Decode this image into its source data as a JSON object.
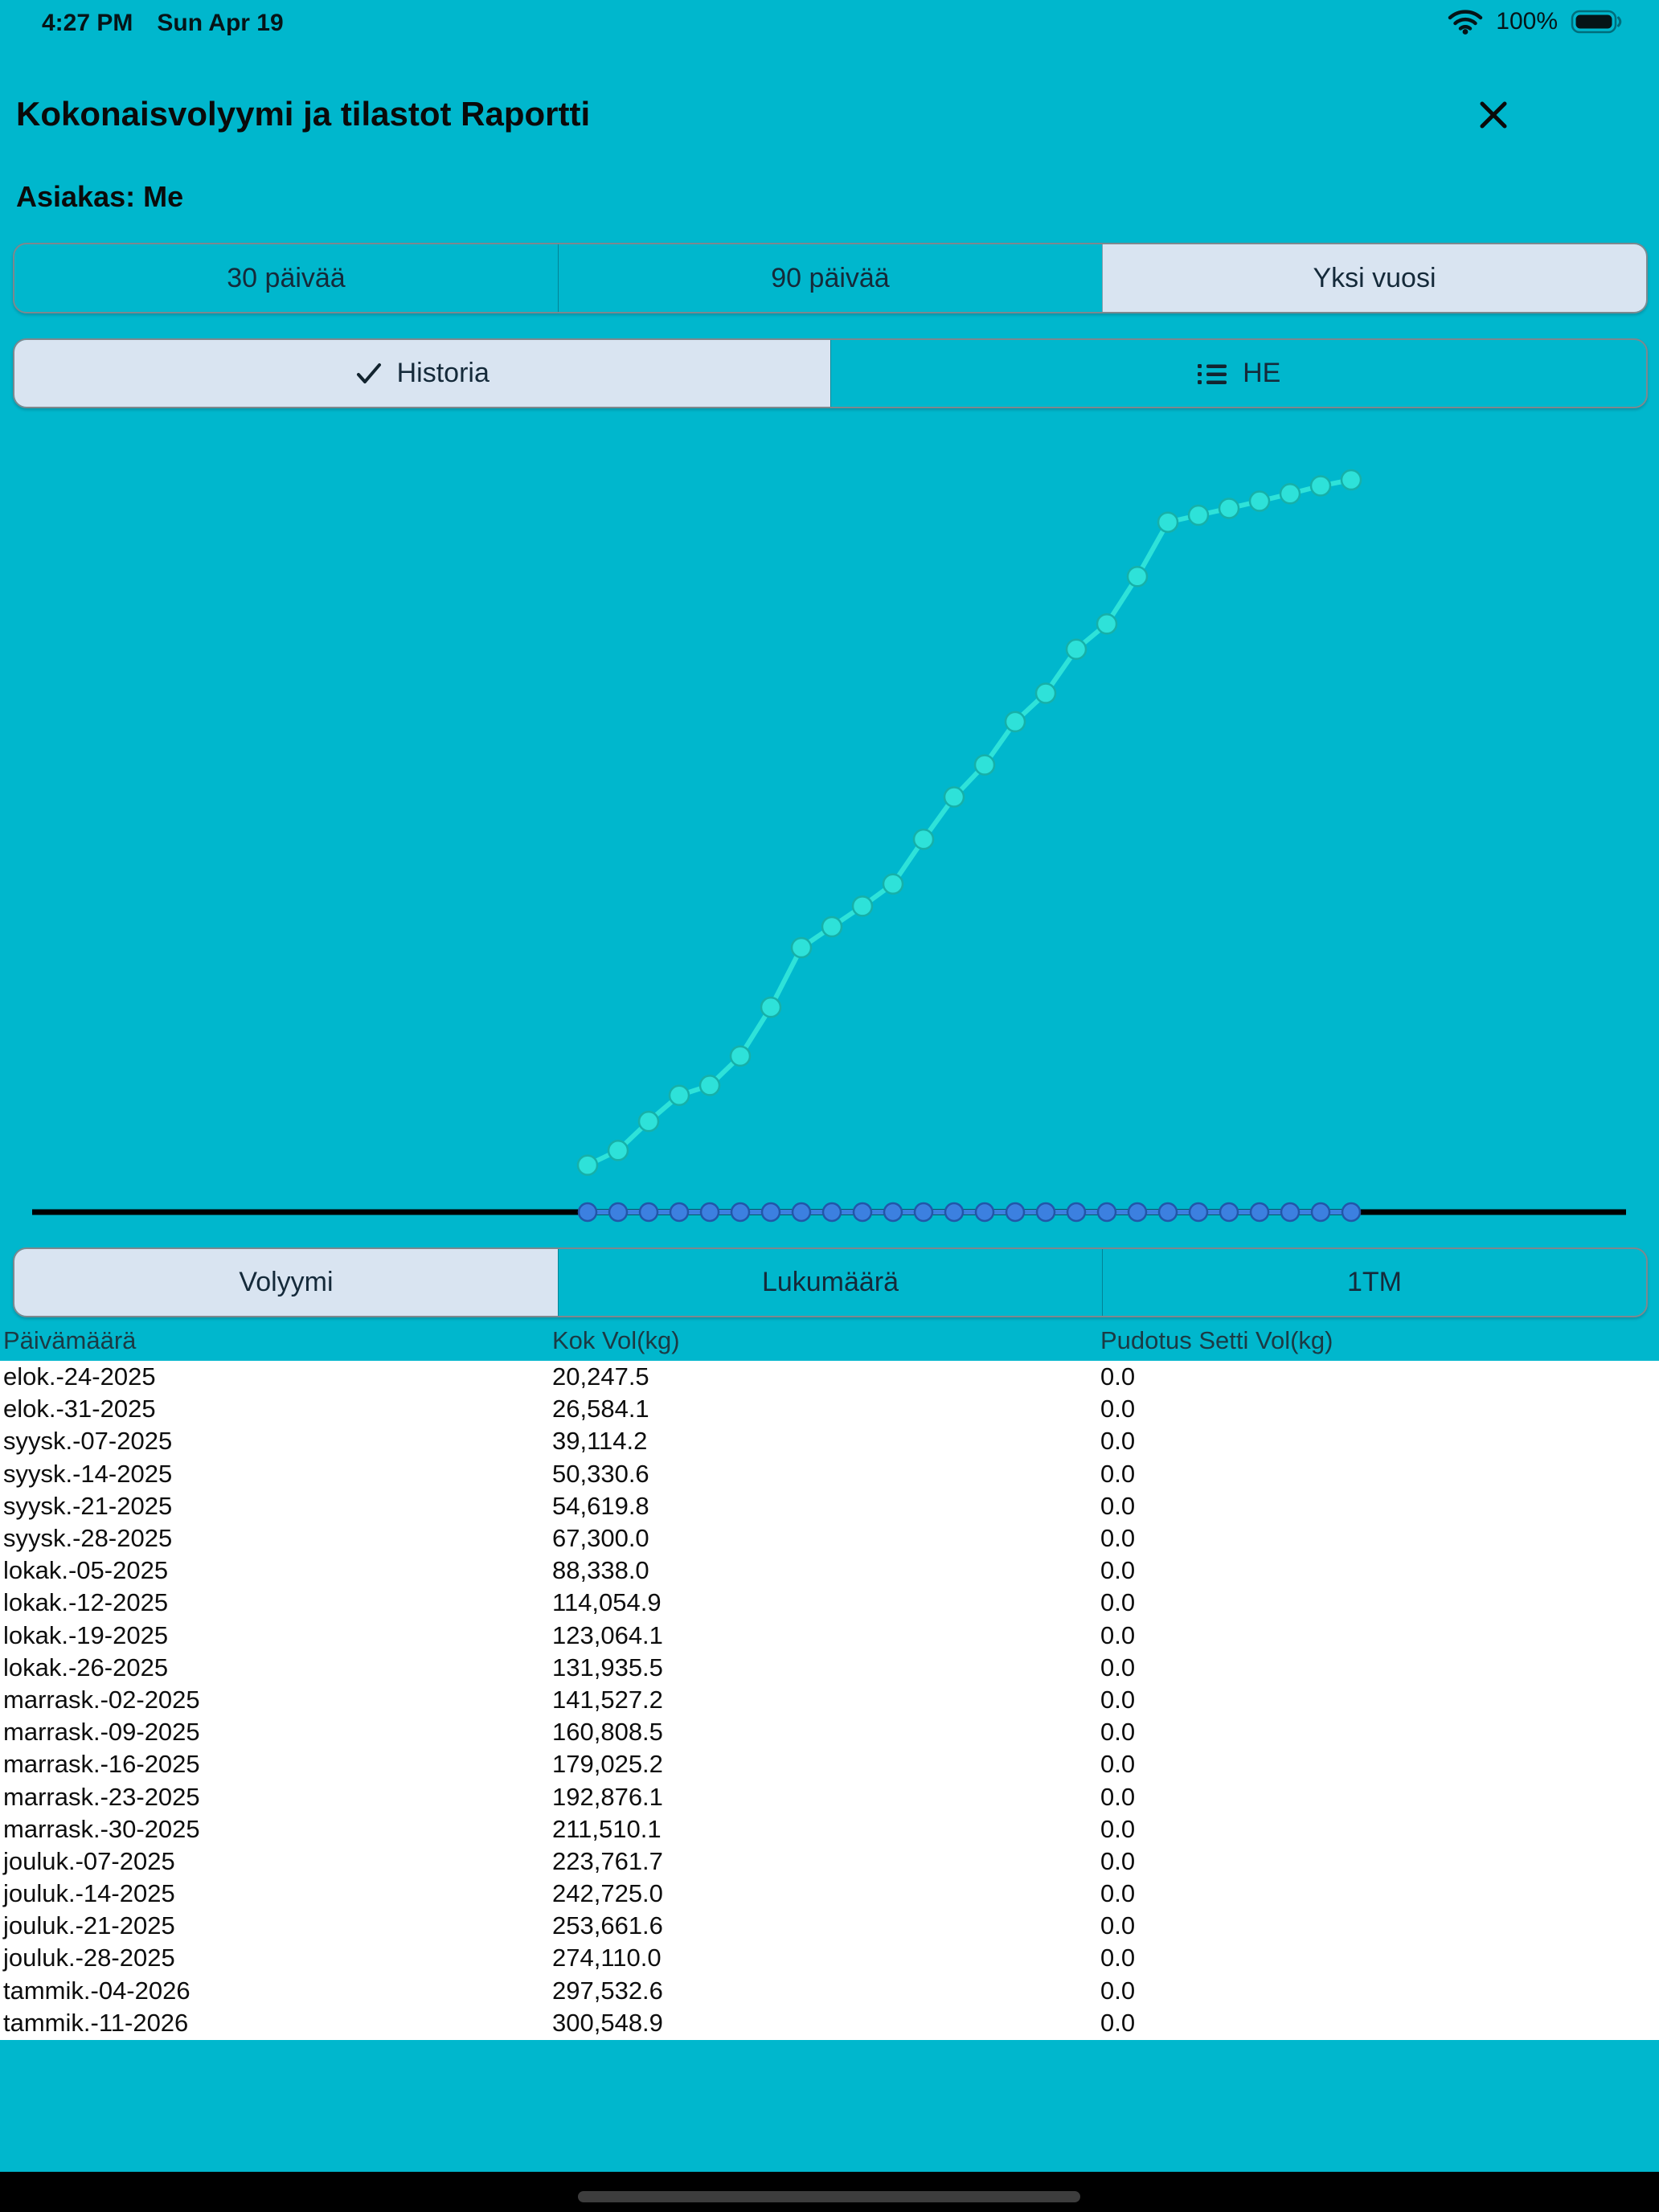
{
  "status_bar": {
    "time": "4:27 PM",
    "date": "Sun Apr 19",
    "battery_percent": "100%",
    "icons": [
      "wifi-icon",
      "battery-icon"
    ]
  },
  "header": {
    "title": "Kokonaisvolyymi ja tilastot Raportti",
    "customer_label": "Asiakas: Me"
  },
  "range_tabs": {
    "items": [
      {
        "label": "30 päivää",
        "selected": false
      },
      {
        "label": "90 päivää",
        "selected": false
      },
      {
        "label": "Yksi vuosi",
        "selected": true
      }
    ]
  },
  "mode_tabs": {
    "items": [
      {
        "label": "Historia",
        "selected": true,
        "icon": "checkmark-icon"
      },
      {
        "label": "HE",
        "selected": false,
        "icon": "list-bullet-icon"
      }
    ]
  },
  "metric_tabs": {
    "items": [
      {
        "label": "Volyymi",
        "selected": true
      },
      {
        "label": "Lukumäärä",
        "selected": false
      },
      {
        "label": "1TM",
        "selected": false
      }
    ]
  },
  "chart_data": {
    "type": "line",
    "title": "",
    "legend": "none",
    "grid": false,
    "axes_hidden": true,
    "ylim": [
      0,
      342000
    ],
    "x_points": 26,
    "baseline": {
      "value": 0,
      "color": "#000000"
    },
    "series": [
      {
        "name": "Kok Vol(kg)",
        "color": "#2ee2d9",
        "marker": "circle",
        "values": [
          20247.5,
          26584.1,
          39114.2,
          50330.6,
          54619.8,
          67300.0,
          88338.0,
          114054.9,
          123064.1,
          131935.5,
          141527.2,
          160808.5,
          179025.2,
          192876.1,
          211510.1,
          223761.7,
          242725.0,
          253661.6,
          274110.0,
          297532.6,
          300548.9,
          303500,
          306600,
          309800,
          313200,
          315800
        ]
      },
      {
        "name": "Pudotus Setti Vol(kg)",
        "color": "#3c80e0",
        "marker": "circle",
        "values": [
          0,
          0,
          0,
          0,
          0,
          0,
          0,
          0,
          0,
          0,
          0,
          0,
          0,
          0,
          0,
          0,
          0,
          0,
          0,
          0,
          0,
          0,
          0,
          0,
          0,
          0
        ]
      }
    ]
  },
  "table": {
    "columns": [
      "Päivämäärä",
      "Kok Vol(kg)",
      "Pudotus Setti Vol(kg)"
    ],
    "rows": [
      [
        "elok.-24-2025",
        "20,247.5",
        "0.0"
      ],
      [
        "elok.-31-2025",
        "26,584.1",
        "0.0"
      ],
      [
        "syysk.-07-2025",
        "39,114.2",
        "0.0"
      ],
      [
        "syysk.-14-2025",
        "50,330.6",
        "0.0"
      ],
      [
        "syysk.-21-2025",
        "54,619.8",
        "0.0"
      ],
      [
        "syysk.-28-2025",
        "67,300.0",
        "0.0"
      ],
      [
        "lokak.-05-2025",
        "88,338.0",
        "0.0"
      ],
      [
        "lokak.-12-2025",
        "114,054.9",
        "0.0"
      ],
      [
        "lokak.-19-2025",
        "123,064.1",
        "0.0"
      ],
      [
        "lokak.-26-2025",
        "131,935.5",
        "0.0"
      ],
      [
        "marrask.-02-2025",
        "141,527.2",
        "0.0"
      ],
      [
        "marrask.-09-2025",
        "160,808.5",
        "0.0"
      ],
      [
        "marrask.-16-2025",
        "179,025.2",
        "0.0"
      ],
      [
        "marrask.-23-2025",
        "192,876.1",
        "0.0"
      ],
      [
        "marrask.-30-2025",
        "211,510.1",
        "0.0"
      ],
      [
        "jouluk.-07-2025",
        "223,761.7",
        "0.0"
      ],
      [
        "jouluk.-14-2025",
        "242,725.0",
        "0.0"
      ],
      [
        "jouluk.-21-2025",
        "253,661.6",
        "0.0"
      ],
      [
        "jouluk.-28-2025",
        "274,110.0",
        "0.0"
      ],
      [
        "tammik.-04-2026",
        "297,532.6",
        "0.0"
      ],
      [
        "tammik.-11-2026",
        "300,548.9",
        "0.0"
      ]
    ]
  },
  "colors": {
    "background": "#00b7cd",
    "segment_selected": "#d9e4f1",
    "segment_border": "#7e888e",
    "segment_text": "#152a3a",
    "line_teal": "#2ee2d9",
    "line_blue": "#3c80e0",
    "baseline_black": "#000000",
    "table_background": "#ffffff"
  }
}
